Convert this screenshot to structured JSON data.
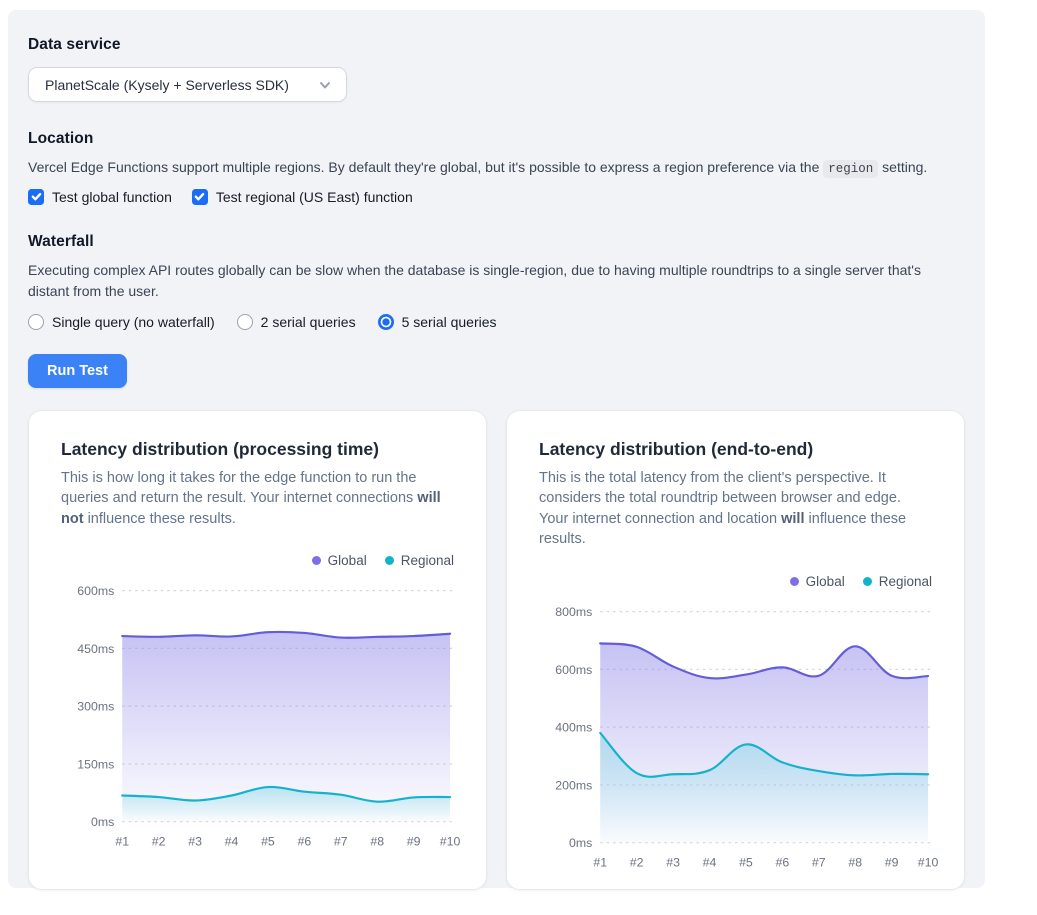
{
  "colors": {
    "accent_blue": "#1b6ef3",
    "button_blue": "#3b82f6",
    "global_line": "#645cd8",
    "global_dot": "#7c70e2",
    "regional_line": "#16b2cc",
    "regional_dot": "#14b2ca",
    "panel_bg": "#f2f3f6",
    "grid": "#d4d8dd"
  },
  "data_service": {
    "label": "Data service",
    "select_value": "PlanetScale (Kysely + Serverless SDK)"
  },
  "location": {
    "label": "Location",
    "desc_pre": "Vercel Edge Functions support multiple regions. By default they're global, but it's possible to express a region preference via the ",
    "desc_code": "region",
    "desc_post": " setting.",
    "checkboxes": [
      {
        "label": "Test global function",
        "checked": true
      },
      {
        "label": "Test regional (US East) function",
        "checked": true
      }
    ]
  },
  "waterfall": {
    "label": "Waterfall",
    "desc": "Executing complex API routes globally can be slow when the database is single-region, due to having multiple roundtrips to a single server that's distant from the user.",
    "radios": [
      {
        "label": "Single query (no waterfall)",
        "selected": false
      },
      {
        "label": "2 serial queries",
        "selected": false
      },
      {
        "label": "5 serial queries",
        "selected": true
      }
    ]
  },
  "run_button": {
    "label": "Run Test"
  },
  "cards": [
    {
      "title": "Latency distribution (processing time)",
      "desc_pre": "This is how long it takes for the edge function to run the queries and return the result. Your internet connections ",
      "desc_bold": "will not",
      "desc_post": " influence these results."
    },
    {
      "title": "Latency distribution (end-to-end)",
      "desc_pre": "This is the total latency from the client's perspective. It considers the total roundtrip between browser and edge. Your internet connection and location ",
      "desc_bold": "will",
      "desc_post": " influence these results."
    }
  ],
  "chart_data": [
    {
      "type": "area",
      "title": "Latency distribution (processing time)",
      "categories": [
        "#1",
        "#2",
        "#3",
        "#4",
        "#5",
        "#6",
        "#7",
        "#8",
        "#9",
        "#10"
      ],
      "series": [
        {
          "name": "Global",
          "color": "#645cd8",
          "fill": "#8d85e8",
          "values": [
            482,
            480,
            484,
            481,
            492,
            490,
            478,
            480,
            482,
            488
          ]
        },
        {
          "name": "Regional",
          "color": "#16b2cc",
          "fill": "#7fd6e4",
          "values": [
            68,
            64,
            55,
            68,
            90,
            78,
            70,
            52,
            63,
            64
          ]
        }
      ],
      "unit": "ms",
      "ylim": [
        0,
        600
      ],
      "yticks": [
        0,
        150,
        300,
        450,
        600
      ],
      "grid": "dashed",
      "legend_position": "top-right"
    },
    {
      "type": "area",
      "title": "Latency distribution (end-to-end)",
      "categories": [
        "#1",
        "#2",
        "#3",
        "#4",
        "#5",
        "#6",
        "#7",
        "#8",
        "#9",
        "#10"
      ],
      "series": [
        {
          "name": "Global",
          "color": "#645cd8",
          "fill": "#8d85e8",
          "values": [
            690,
            678,
            610,
            570,
            582,
            607,
            578,
            680,
            578,
            577
          ]
        },
        {
          "name": "Regional",
          "color": "#16b2cc",
          "fill": "#7fd6e4",
          "values": [
            380,
            241,
            237,
            251,
            340,
            278,
            248,
            233,
            238,
            237
          ]
        }
      ],
      "unit": "ms",
      "ylim": [
        0,
        800
      ],
      "yticks": [
        0,
        200,
        400,
        600,
        800
      ],
      "grid": "dashed",
      "legend_position": "top-right"
    }
  ]
}
